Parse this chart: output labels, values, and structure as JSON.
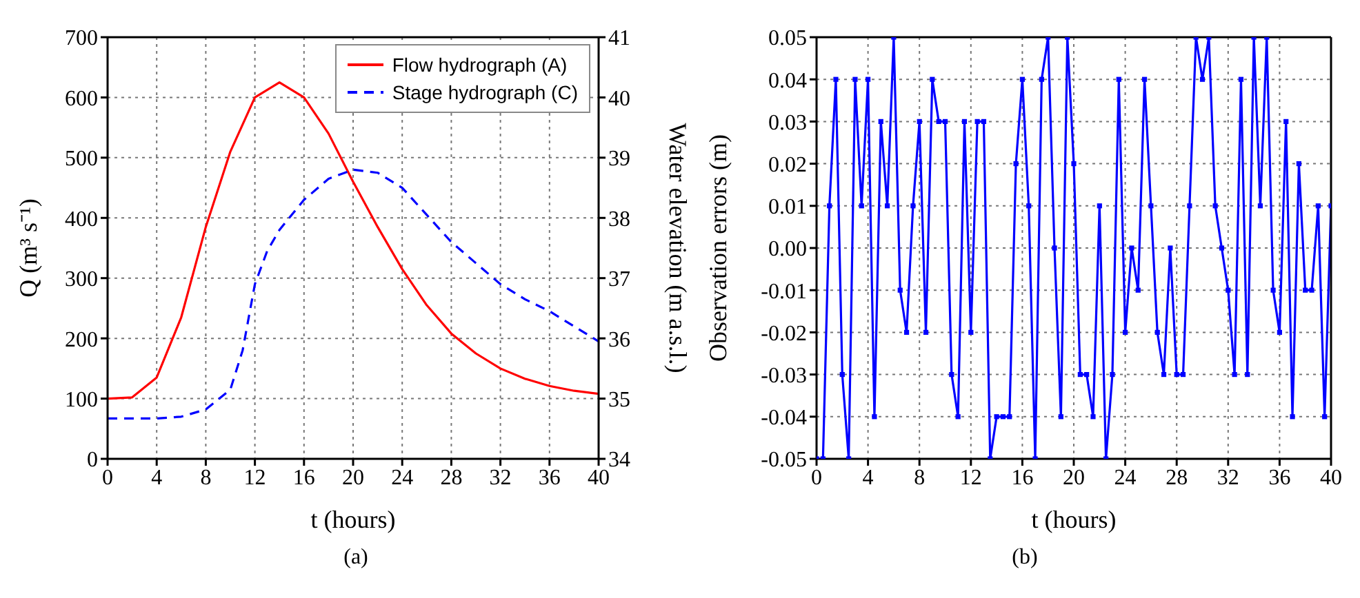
{
  "chart_data": [
    {
      "type": "line",
      "xlabel": "t (hours)",
      "ylabel": "Q (m³ s⁻¹)",
      "y2label": "Water elevation (m a.s.l.)",
      "annotations": [
        "(a)"
      ],
      "series": [
        {
          "name": "Flow hydrograph (A)",
          "color": "#ff0000",
          "line_style": "solid",
          "x": [
            0,
            2,
            4,
            6,
            8,
            10,
            12,
            14,
            16,
            18,
            20,
            22,
            24,
            26,
            28,
            30,
            32,
            34,
            36,
            38,
            40
          ],
          "values": [
            100,
            102,
            135,
            235,
            385,
            510,
            600,
            625,
            600,
            540,
            460,
            385,
            315,
            255,
            208,
            175,
            150,
            133,
            121,
            113,
            108
          ]
        },
        {
          "name": "Stage hydrograph (C)",
          "color": "#0000ff",
          "line_style": "dashed",
          "axis": "y2",
          "x": [
            0,
            2,
            4,
            6,
            8,
            10,
            11,
            12,
            13,
            14,
            16,
            18,
            20,
            22,
            24,
            26,
            28,
            30,
            32,
            34,
            36,
            38,
            40
          ],
          "values": [
            34.67,
            34.67,
            34.67,
            34.7,
            34.82,
            35.15,
            35.8,
            36.9,
            37.45,
            37.8,
            38.3,
            38.65,
            38.8,
            38.75,
            38.5,
            38.05,
            37.6,
            37.25,
            36.9,
            36.65,
            36.45,
            36.2,
            35.95
          ]
        }
      ],
      "xlim": [
        0,
        40
      ],
      "xticks": [
        0,
        4,
        8,
        12,
        16,
        20,
        24,
        28,
        32,
        36,
        40
      ],
      "ylim": [
        0,
        700
      ],
      "yticks": [
        0,
        100,
        200,
        300,
        400,
        500,
        600,
        700
      ],
      "y2lim": [
        34,
        41
      ],
      "y2ticks": [
        34,
        35,
        36,
        37,
        38,
        39,
        40,
        41
      ],
      "grid": true,
      "legend": "top right"
    },
    {
      "type": "line",
      "xlabel": "t (hours)",
      "ylabel": "Observation errors (m)",
      "annotations": [
        "(b)"
      ],
      "marker": "square",
      "series": [
        {
          "color": "#0000ff",
          "x": [
            0,
            0.5,
            1,
            1.5,
            2,
            2.5,
            3,
            3.5,
            4,
            4.5,
            5,
            5.5,
            6,
            6.5,
            7,
            7.5,
            8,
            8.5,
            9,
            9.5,
            10,
            10.5,
            11,
            11.5,
            12,
            12.5,
            13,
            13.5,
            14,
            14.5,
            15,
            15.5,
            16,
            16.5,
            17,
            17.5,
            18,
            18.5,
            19,
            19.5,
            20,
            20.5,
            21,
            21.5,
            22,
            22.5,
            23,
            23.5,
            24,
            24.5,
            25,
            25.5,
            26,
            26.5,
            27,
            27.5,
            28,
            28.5,
            29,
            29.5,
            30,
            30.5,
            31,
            31.5,
            32,
            32.5,
            33,
            33.5,
            34,
            34.5,
            35,
            35.5,
            36,
            36.5,
            37,
            37.5,
            38,
            38.5,
            39,
            39.5,
            40
          ],
          "values": [
            -0.05,
            -0.05,
            0.01,
            0.04,
            -0.03,
            -0.05,
            0.04,
            0.01,
            0.04,
            -0.04,
            0.03,
            0.01,
            0.05,
            -0.01,
            -0.02,
            0.01,
            0.03,
            -0.02,
            0.04,
            0.03,
            0.03,
            -0.03,
            -0.04,
            0.03,
            -0.02,
            0.03,
            0.03,
            -0.05,
            -0.04,
            -0.04,
            -0.04,
            0.02,
            0.04,
            0.01,
            -0.05,
            0.04,
            0.05,
            0.0,
            -0.04,
            0.05,
            0.02,
            -0.03,
            -0.03,
            -0.04,
            0.01,
            -0.05,
            -0.03,
            0.04,
            -0.02,
            0.0,
            -0.01,
            0.04,
            0.01,
            -0.02,
            -0.03,
            0.0,
            -0.03,
            -0.03,
            0.01,
            0.05,
            0.04,
            0.05,
            0.01,
            0.0,
            -0.01,
            -0.03,
            0.04,
            -0.03,
            0.05,
            0.01,
            0.05,
            -0.01,
            -0.02,
            0.03,
            -0.04,
            0.02,
            -0.01,
            -0.01,
            0.01,
            -0.04,
            0.01
          ]
        }
      ],
      "xlim": [
        0,
        40
      ],
      "xticks": [
        0,
        4,
        8,
        12,
        16,
        20,
        24,
        28,
        32,
        36,
        40
      ],
      "ylim": [
        -0.05,
        0.05
      ],
      "yticks": [
        {
          "value": -0.05,
          "label": "-0.05"
        },
        {
          "value": -0.04,
          "label": "-0.04"
        },
        {
          "value": -0.03,
          "label": "-0.03"
        },
        {
          "value": -0.02,
          "label": "-0.02"
        },
        {
          "value": -0.01,
          "label": "-0.01"
        },
        {
          "value": 0,
          "label": "0.00"
        },
        {
          "value": 0.01,
          "label": "0.01"
        },
        {
          "value": 0.02,
          "label": "0.02"
        },
        {
          "value": 0.03,
          "label": "0.03"
        },
        {
          "value": 0.04,
          "label": "0.04"
        },
        {
          "value": 0.05,
          "label": "0.05"
        }
      ],
      "grid": true
    }
  ]
}
